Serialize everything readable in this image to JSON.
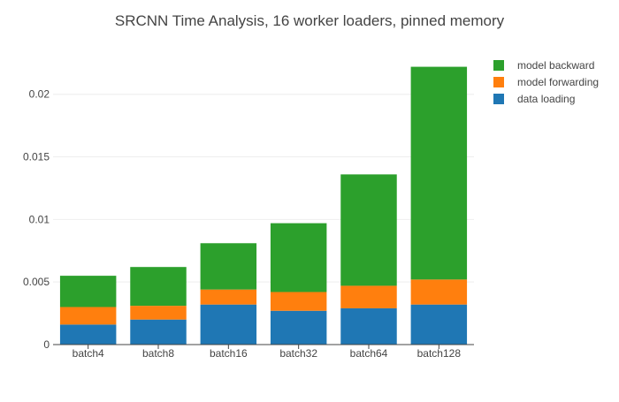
{
  "chart_data": {
    "type": "bar",
    "stacked": true,
    "title": "SRCNN Time Analysis, 16 worker loaders, pinned memory",
    "xlabel": "",
    "ylabel": "",
    "categories": [
      "batch4",
      "batch8",
      "batch16",
      "batch32",
      "batch64",
      "batch128"
    ],
    "ylim": [
      0,
      0.0233
    ],
    "yticks": [
      {
        "value": 0,
        "label": "0"
      },
      {
        "value": 0.005,
        "label": "0.005"
      },
      {
        "value": 0.01,
        "label": "0.01"
      },
      {
        "value": 0.015,
        "label": "0.015"
      },
      {
        "value": 0.02,
        "label": "0.02"
      }
    ],
    "grid": true,
    "legend_position": "top-right",
    "series": [
      {
        "name": "data loading",
        "color": "#1f77b4",
        "values": [
          0.0016,
          0.002,
          0.0032,
          0.0027,
          0.0029,
          0.0032
        ]
      },
      {
        "name": "model forwarding",
        "color": "#ff7f0e",
        "values": [
          0.0014,
          0.0011,
          0.0012,
          0.0015,
          0.0018,
          0.002
        ]
      },
      {
        "name": "model backward",
        "color": "#2ca02c",
        "values": [
          0.0025,
          0.0031,
          0.0037,
          0.0055,
          0.0089,
          0.017
        ]
      }
    ],
    "legend_order": [
      "model backward",
      "model forwarding",
      "data loading"
    ]
  }
}
